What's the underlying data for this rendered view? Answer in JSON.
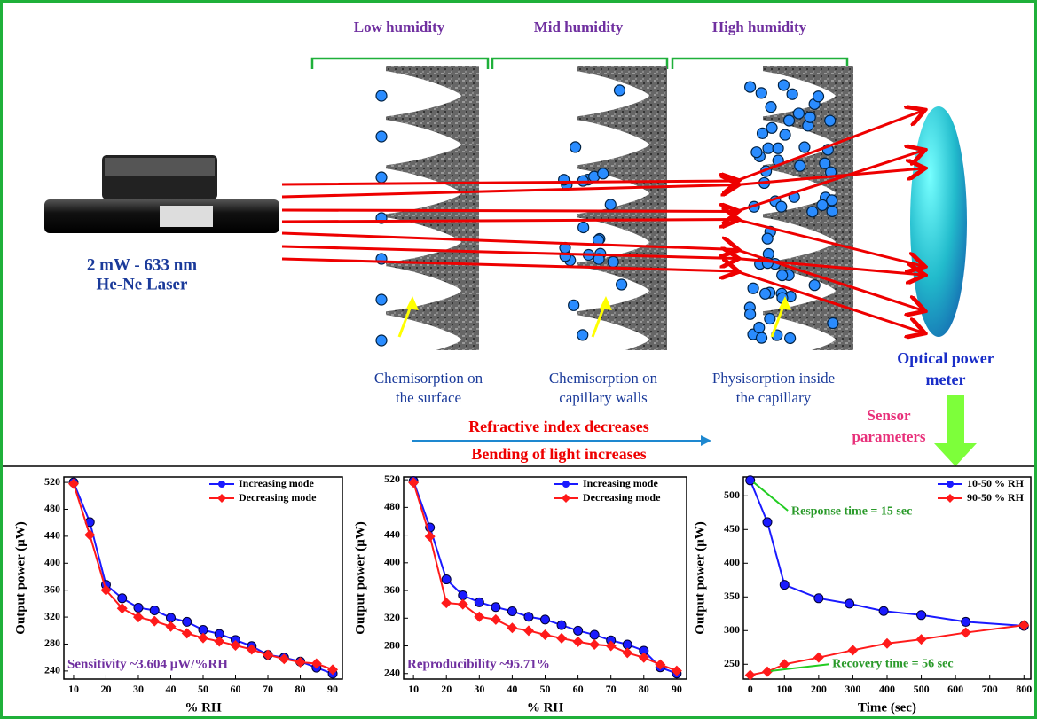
{
  "diagram": {
    "stages": [
      "Low humidity",
      "Mid humidity",
      "High humidity"
    ],
    "laser": [
      "2 mW - 633 nm",
      "He-Ne Laser"
    ],
    "captions": [
      [
        "Chemisorption on",
        "the surface"
      ],
      [
        "Chemisorption on",
        "capillary walls"
      ],
      [
        "Physisorption  inside",
        "the capillary"
      ]
    ],
    "meter": [
      "Optical power",
      "meter"
    ],
    "sensor": [
      "Sensor",
      "parameters"
    ],
    "trend": [
      "Refractive index decreases",
      "Bending of light increases"
    ]
  },
  "chart_data": [
    {
      "type": "line",
      "x_label": "% RH",
      "y_label": "Output power (μW)",
      "annotation": "Sensitivity ~3.604 μW/%RH",
      "x": [
        10,
        15,
        20,
        25,
        30,
        35,
        40,
        45,
        50,
        55,
        60,
        65,
        70,
        75,
        80,
        85,
        90
      ],
      "series": [
        {
          "name": "Increasing mode",
          "color": "#1a1aff",
          "marker": "circle",
          "values": [
            520,
            461,
            368,
            348,
            334,
            330,
            319,
            313,
            301,
            295,
            286,
            277,
            264,
            260,
            254,
            245,
            236
          ]
        },
        {
          "name": "Decreasing mode",
          "color": "#ff1a1a",
          "marker": "diamond",
          "values": [
            518,
            442,
            360,
            333,
            320,
            314,
            306,
            296,
            289,
            284,
            278,
            272,
            264,
            258,
            253,
            251,
            242
          ]
        }
      ],
      "xlim": [
        7,
        93
      ],
      "ylim": [
        228,
        528
      ],
      "xticks": [
        10,
        20,
        30,
        40,
        50,
        60,
        70,
        80,
        90
      ],
      "yticks": [
        240,
        280,
        320,
        360,
        400,
        440,
        480,
        520
      ]
    },
    {
      "type": "line",
      "x_label": "% RH",
      "y_label": "Output power (μW)",
      "annotation": "Reproducibility ~95.71%",
      "x": [
        10,
        15,
        20,
        25,
        30,
        35,
        40,
        45,
        50,
        55,
        60,
        65,
        70,
        75,
        80,
        85,
        90
      ],
      "series": [
        {
          "name": "Increasing mode",
          "color": "#1a1aff",
          "marker": "circle",
          "values": [
            518,
            451,
            376,
            353,
            343,
            336,
            330,
            322,
            318,
            310,
            302,
            296,
            288,
            282,
            273,
            249,
            240
          ]
        },
        {
          "name": "Decreasing mode",
          "color": "#ff1a1a",
          "marker": "diamond",
          "values": [
            516,
            438,
            342,
            340,
            322,
            318,
            306,
            302,
            296,
            291,
            286,
            282,
            280,
            270,
            263,
            253,
            244
          ]
        }
      ],
      "xlim": [
        7,
        93
      ],
      "ylim": [
        232,
        524
      ],
      "xticks": [
        10,
        20,
        30,
        40,
        50,
        60,
        70,
        80,
        90
      ],
      "yticks": [
        240,
        280,
        320,
        360,
        400,
        440,
        480,
        520
      ]
    },
    {
      "type": "line",
      "x_label": "Time (sec)",
      "y_label": "Output power (μW)",
      "annotations": [
        "Response time = 15 sec",
        "Recovery time = 56 sec"
      ],
      "series": [
        {
          "name": "10-50 % RH",
          "color": "#1a1aff",
          "marker": "circle",
          "x": [
            0,
            50,
            100,
            200,
            290,
            390,
            500,
            630,
            800
          ],
          "values": [
            523,
            461,
            368,
            348,
            340,
            329,
            323,
            313,
            307
          ]
        },
        {
          "name": "90-50 % RH",
          "color": "#ff1a1a",
          "marker": "diamond",
          "x": [
            0,
            50,
            100,
            200,
            300,
            400,
            500,
            630,
            800
          ],
          "values": [
            234,
            239,
            250,
            260,
            271,
            281,
            287,
            297,
            308
          ]
        }
      ],
      "xlim": [
        -20,
        820
      ],
      "ylim": [
        228,
        528
      ],
      "xticks": [
        0,
        100,
        200,
        300,
        400,
        500,
        600,
        700,
        800
      ],
      "yticks": [
        250,
        300,
        350,
        400,
        450,
        500
      ]
    }
  ]
}
